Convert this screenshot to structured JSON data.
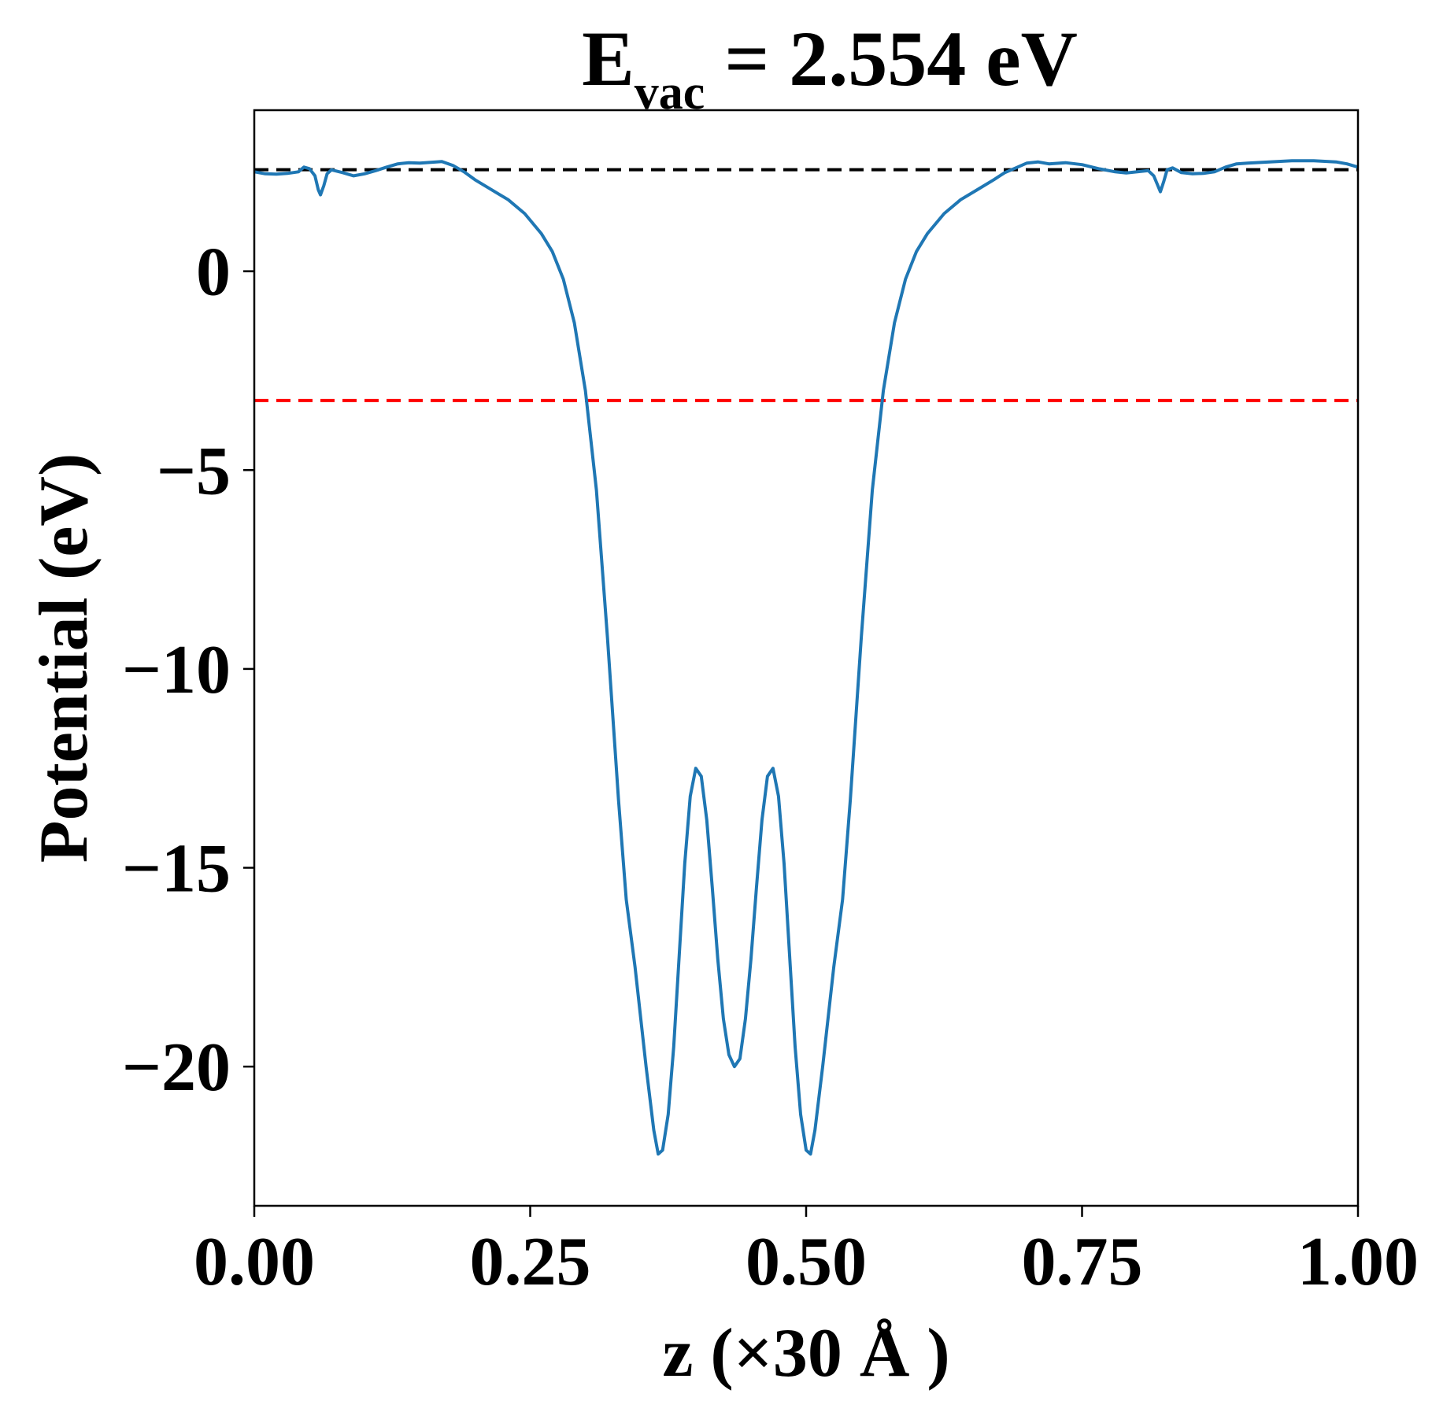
{
  "chart_data": {
    "type": "line",
    "title": {
      "main": "E",
      "subscript": "vac",
      "rest": " = 2.554 eV"
    },
    "xlabel": "z (×30 Å )",
    "ylabel": "Potential (eV)",
    "xlim": [
      0.0,
      1.0
    ],
    "ylim": [
      -23.5,
      4.05
    ],
    "xticks": [
      {
        "value": 0.0,
        "label": "0.00"
      },
      {
        "value": 0.25,
        "label": "0.25"
      },
      {
        "value": 0.5,
        "label": "0.50"
      },
      {
        "value": 0.75,
        "label": "0.75"
      },
      {
        "value": 1.0,
        "label": "1.00"
      }
    ],
    "yticks": [
      {
        "value": 0,
        "label": "0"
      },
      {
        "value": -5,
        "label": "−5"
      },
      {
        "value": -10,
        "label": "−10"
      },
      {
        "value": -15,
        "label": "−15"
      },
      {
        "value": -20,
        "label": "−20"
      }
    ],
    "grid": false,
    "reference_lines": [
      {
        "y": 2.554,
        "color": "#000000",
        "style": "dashed"
      },
      {
        "y": -3.25,
        "color": "#ff0000",
        "style": "dashed"
      }
    ],
    "series": [
      {
        "color": "#1f77b4",
        "points": [
          [
            0.0,
            2.5
          ],
          [
            0.01,
            2.45
          ],
          [
            0.02,
            2.44
          ],
          [
            0.03,
            2.46
          ],
          [
            0.04,
            2.5
          ],
          [
            0.045,
            2.62
          ],
          [
            0.05,
            2.58
          ],
          [
            0.055,
            2.4
          ],
          [
            0.058,
            2.05
          ],
          [
            0.06,
            1.92
          ],
          [
            0.063,
            2.15
          ],
          [
            0.066,
            2.45
          ],
          [
            0.07,
            2.55
          ],
          [
            0.08,
            2.48
          ],
          [
            0.09,
            2.4
          ],
          [
            0.1,
            2.45
          ],
          [
            0.11,
            2.53
          ],
          [
            0.12,
            2.62
          ],
          [
            0.13,
            2.7
          ],
          [
            0.14,
            2.73
          ],
          [
            0.15,
            2.72
          ],
          [
            0.16,
            2.74
          ],
          [
            0.17,
            2.76
          ],
          [
            0.18,
            2.66
          ],
          [
            0.19,
            2.5
          ],
          [
            0.2,
            2.3
          ],
          [
            0.215,
            2.05
          ],
          [
            0.23,
            1.8
          ],
          [
            0.245,
            1.45
          ],
          [
            0.26,
            0.95
          ],
          [
            0.27,
            0.5
          ],
          [
            0.28,
            -0.2
          ],
          [
            0.29,
            -1.3
          ],
          [
            0.3,
            -3.0
          ],
          [
            0.31,
            -5.5
          ],
          [
            0.32,
            -9.2
          ],
          [
            0.33,
            -13.3
          ],
          [
            0.337,
            -15.8
          ],
          [
            0.345,
            -17.5
          ],
          [
            0.355,
            -20.0
          ],
          [
            0.362,
            -21.6
          ],
          [
            0.366,
            -22.2
          ],
          [
            0.37,
            -22.1
          ],
          [
            0.375,
            -21.2
          ],
          [
            0.38,
            -19.5
          ],
          [
            0.385,
            -17.2
          ],
          [
            0.39,
            -14.9
          ],
          [
            0.395,
            -13.2
          ],
          [
            0.4,
            -12.5
          ],
          [
            0.405,
            -12.7
          ],
          [
            0.41,
            -13.8
          ],
          [
            0.415,
            -15.5
          ],
          [
            0.42,
            -17.3
          ],
          [
            0.425,
            -18.8
          ],
          [
            0.43,
            -19.7
          ],
          [
            0.435,
            -20.0
          ],
          [
            0.44,
            -19.8
          ],
          [
            0.445,
            -18.8
          ],
          [
            0.45,
            -17.3
          ],
          [
            0.455,
            -15.5
          ],
          [
            0.46,
            -13.8
          ],
          [
            0.465,
            -12.7
          ],
          [
            0.47,
            -12.5
          ],
          [
            0.475,
            -13.2
          ],
          [
            0.48,
            -14.9
          ],
          [
            0.485,
            -17.2
          ],
          [
            0.49,
            -19.5
          ],
          [
            0.495,
            -21.2
          ],
          [
            0.5,
            -22.1
          ],
          [
            0.504,
            -22.2
          ],
          [
            0.508,
            -21.6
          ],
          [
            0.515,
            -20.0
          ],
          [
            0.525,
            -17.5
          ],
          [
            0.533,
            -15.8
          ],
          [
            0.54,
            -13.3
          ],
          [
            0.55,
            -9.2
          ],
          [
            0.56,
            -5.5
          ],
          [
            0.57,
            -3.0
          ],
          [
            0.58,
            -1.3
          ],
          [
            0.59,
            -0.2
          ],
          [
            0.6,
            0.5
          ],
          [
            0.61,
            0.95
          ],
          [
            0.625,
            1.45
          ],
          [
            0.64,
            1.8
          ],
          [
            0.655,
            2.05
          ],
          [
            0.67,
            2.3
          ],
          [
            0.68,
            2.48
          ],
          [
            0.69,
            2.6
          ],
          [
            0.7,
            2.72
          ],
          [
            0.71,
            2.75
          ],
          [
            0.72,
            2.7
          ],
          [
            0.735,
            2.73
          ],
          [
            0.75,
            2.68
          ],
          [
            0.765,
            2.58
          ],
          [
            0.78,
            2.5
          ],
          [
            0.79,
            2.47
          ],
          [
            0.8,
            2.5
          ],
          [
            0.81,
            2.53
          ],
          [
            0.815,
            2.4
          ],
          [
            0.818,
            2.2
          ],
          [
            0.821,
            2.0
          ],
          [
            0.824,
            2.25
          ],
          [
            0.827,
            2.55
          ],
          [
            0.832,
            2.6
          ],
          [
            0.84,
            2.48
          ],
          [
            0.85,
            2.45
          ],
          [
            0.86,
            2.46
          ],
          [
            0.87,
            2.5
          ],
          [
            0.88,
            2.62
          ],
          [
            0.89,
            2.7
          ],
          [
            0.9,
            2.72
          ],
          [
            0.92,
            2.75
          ],
          [
            0.94,
            2.78
          ],
          [
            0.96,
            2.78
          ],
          [
            0.98,
            2.75
          ],
          [
            0.99,
            2.7
          ],
          [
            1.0,
            2.62
          ]
        ]
      }
    ]
  }
}
